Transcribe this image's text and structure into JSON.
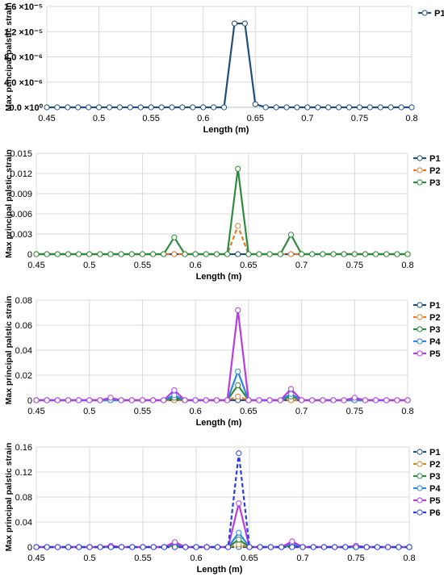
{
  "chart_data": [
    {
      "type": "line",
      "xlabel": "Length (m)",
      "ylabel": "Max principal palstic strain",
      "xlim": [
        0.45,
        0.8
      ],
      "ylim": [
        0,
        1.6e-05
      ],
      "x_ticks": [
        "0.45",
        "0.5",
        "0.55",
        "0.6",
        "0.65",
        "0.7",
        "0.75",
        "0.8"
      ],
      "y_ticks": [
        "0.0 ×10⁰",
        "4.0 ×10⁻⁶",
        "8.0 ×10⁻⁶",
        "1.2 ×10⁻⁵",
        "1.6 ×10⁻⁵"
      ],
      "grid": true,
      "legend_position": "top-right",
      "series": [
        {
          "name": "P1",
          "color": "#1f4e79",
          "dash": false,
          "points": [
            [
              0.62,
              0
            ],
            [
              0.63,
              1.33e-05
            ],
            [
              0.64,
              1.33e-05
            ],
            [
              0.65,
              5e-07
            ],
            [
              0.66,
              0
            ]
          ]
        }
      ]
    },
    {
      "type": "line",
      "xlabel": "Length (m)",
      "ylabel": "Max principal palstic strain",
      "xlim": [
        0.45,
        0.8
      ],
      "ylim": [
        0,
        0.015
      ],
      "x_ticks": [
        "0.45",
        "0.5",
        "0.55",
        "0.6",
        "0.65",
        "0.7",
        "0.75",
        "0.8"
      ],
      "y_ticks": [
        "0",
        "0.003",
        "0.006",
        "0.009",
        "0.012",
        "0.015"
      ],
      "grid": true,
      "legend_position": "top-right",
      "series": [
        {
          "name": "P1",
          "color": "#1f4e79",
          "dash": false,
          "points": []
        },
        {
          "name": "P2",
          "color": "#e07b2a",
          "dash": true,
          "points": [
            [
              0.63,
              0
            ],
            [
              0.64,
              0.0042
            ],
            [
              0.65,
              0
            ]
          ]
        },
        {
          "name": "P3",
          "color": "#2e8b3e",
          "dash": false,
          "points": [
            [
              0.57,
              0
            ],
            [
              0.58,
              0.0025
            ],
            [
              0.59,
              0
            ],
            [
              0.63,
              0
            ],
            [
              0.64,
              0.0127
            ],
            [
              0.65,
              0
            ],
            [
              0.68,
              0
            ],
            [
              0.69,
              0.0029
            ],
            [
              0.7,
              0
            ]
          ]
        }
      ]
    },
    {
      "type": "line",
      "xlabel": "Length (m)",
      "ylabel": "Max principal palstic strain",
      "xlim": [
        0.45,
        0.8
      ],
      "ylim": [
        0,
        0.08
      ],
      "x_ticks": [
        "0.45",
        "0.5",
        "0.55",
        "0.6",
        "0.65",
        "0.7",
        "0.75",
        "0.8"
      ],
      "y_ticks": [
        "0",
        "0.02",
        "0.04",
        "0.06",
        "0.08"
      ],
      "grid": true,
      "legend_position": "top-right",
      "series": [
        {
          "name": "P1",
          "color": "#1f4e79",
          "dash": false,
          "points": []
        },
        {
          "name": "P2",
          "color": "#e07b2a",
          "dash": true,
          "points": [
            [
              0.63,
              0
            ],
            [
              0.64,
              0.003
            ],
            [
              0.65,
              0
            ]
          ]
        },
        {
          "name": "P3",
          "color": "#2e8b3e",
          "dash": false,
          "points": [
            [
              0.57,
              0
            ],
            [
              0.58,
              0.002
            ],
            [
              0.59,
              0
            ],
            [
              0.63,
              0
            ],
            [
              0.64,
              0.012
            ],
            [
              0.65,
              0
            ],
            [
              0.68,
              0
            ],
            [
              0.69,
              0.003
            ],
            [
              0.7,
              0
            ]
          ]
        },
        {
          "name": "P4",
          "color": "#2e86de",
          "dash": false,
          "points": [
            [
              0.57,
              0
            ],
            [
              0.58,
              0.004
            ],
            [
              0.59,
              0
            ],
            [
              0.63,
              0
            ],
            [
              0.64,
              0.023
            ],
            [
              0.65,
              0
            ],
            [
              0.68,
              0
            ],
            [
              0.69,
              0.005
            ],
            [
              0.7,
              0
            ]
          ]
        },
        {
          "name": "P5",
          "color": "#b63ee0",
          "dash": false,
          "points": [
            [
              0.51,
              0
            ],
            [
              0.52,
              0.002
            ],
            [
              0.53,
              0
            ],
            [
              0.57,
              0
            ],
            [
              0.58,
              0.008
            ],
            [
              0.59,
              0
            ],
            [
              0.63,
              0
            ],
            [
              0.64,
              0.072
            ],
            [
              0.65,
              0
            ],
            [
              0.68,
              0
            ],
            [
              0.69,
              0.009
            ],
            [
              0.7,
              0
            ],
            [
              0.74,
              0
            ],
            [
              0.75,
              0.002
            ],
            [
              0.76,
              0
            ]
          ]
        }
      ]
    },
    {
      "type": "line",
      "xlabel": "Length (m)",
      "ylabel": "Max principal palstic strain",
      "xlim": [
        0.45,
        0.8
      ],
      "ylim": [
        0,
        0.16
      ],
      "x_ticks": [
        "0.45",
        "0.5",
        "0.55",
        "0.6",
        "0.65",
        "0.7",
        "0.75",
        "0.8"
      ],
      "y_ticks": [
        "0",
        "0.04",
        "0.08",
        "0.12",
        "0.16"
      ],
      "grid": true,
      "legend_position": "top-right",
      "series": [
        {
          "name": "P1",
          "color": "#1f4e79",
          "dash": true,
          "points": []
        },
        {
          "name": "P2",
          "color": "#c58a2c",
          "dash": true,
          "points": [
            [
              0.63,
              0
            ],
            [
              0.64,
              0.004
            ],
            [
              0.65,
              0
            ]
          ]
        },
        {
          "name": "P3",
          "color": "#2e8b3e",
          "dash": false,
          "points": [
            [
              0.57,
              0
            ],
            [
              0.58,
              0.003
            ],
            [
              0.59,
              0
            ],
            [
              0.63,
              0
            ],
            [
              0.64,
              0.012
            ],
            [
              0.65,
              0
            ],
            [
              0.68,
              0
            ],
            [
              0.69,
              0.003
            ],
            [
              0.7,
              0
            ]
          ]
        },
        {
          "name": "P4",
          "color": "#2e86de",
          "dash": false,
          "points": [
            [
              0.57,
              0
            ],
            [
              0.58,
              0.005
            ],
            [
              0.59,
              0
            ],
            [
              0.63,
              0
            ],
            [
              0.64,
              0.023
            ],
            [
              0.65,
              0
            ],
            [
              0.68,
              0
            ],
            [
              0.69,
              0.006
            ],
            [
              0.7,
              0
            ]
          ]
        },
        {
          "name": "P5",
          "color": "#b63ee0",
          "dash": false,
          "points": [
            [
              0.51,
              0
            ],
            [
              0.52,
              0.002
            ],
            [
              0.53,
              0
            ],
            [
              0.57,
              0
            ],
            [
              0.58,
              0.008
            ],
            [
              0.59,
              0
            ],
            [
              0.63,
              0
            ],
            [
              0.64,
              0.07
            ],
            [
              0.65,
              0
            ],
            [
              0.68,
              0
            ],
            [
              0.69,
              0.009
            ],
            [
              0.7,
              0
            ],
            [
              0.74,
              0
            ],
            [
              0.75,
              0.002
            ],
            [
              0.76,
              0
            ]
          ]
        },
        {
          "name": "P6",
          "color": "#2a3fd6",
          "dash": true,
          "points": [
            [
              0.63,
              0
            ],
            [
              0.64,
              0.15
            ],
            [
              0.65,
              0
            ]
          ]
        }
      ]
    }
  ]
}
